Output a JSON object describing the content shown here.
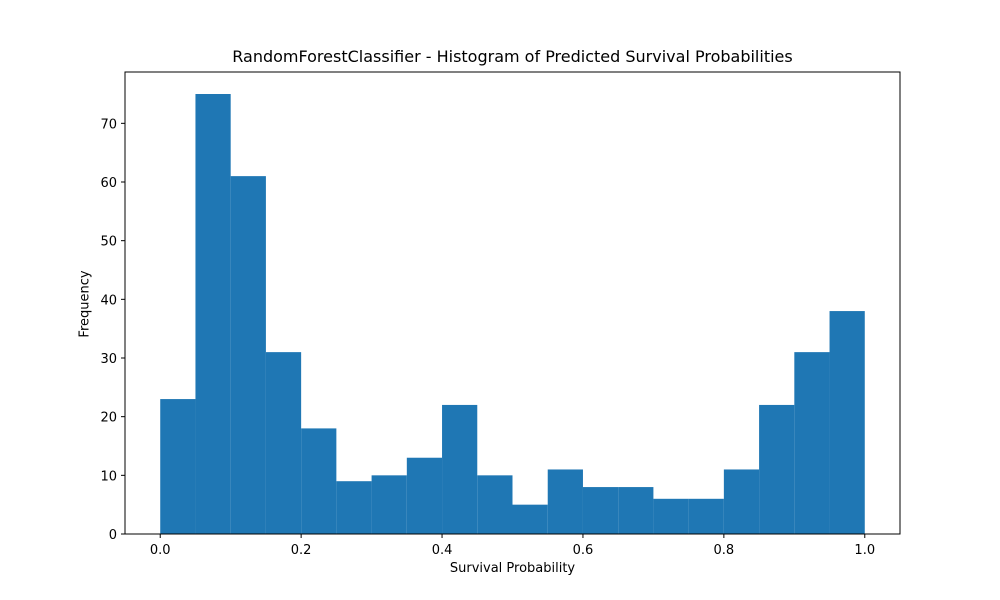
{
  "chart_data": {
    "type": "bar",
    "title": "RandomForestClassifier - Histogram of Predicted Survival Probabilities",
    "xlabel": "Survival Probability",
    "ylabel": "Frequency",
    "bin_edges": [
      0.0,
      0.05,
      0.1,
      0.15,
      0.2,
      0.25,
      0.3,
      0.35,
      0.4,
      0.45,
      0.5,
      0.55,
      0.6,
      0.65,
      0.7,
      0.75,
      0.8,
      0.85,
      0.9,
      0.95,
      1.0
    ],
    "values": [
      23,
      75,
      61,
      31,
      18,
      9,
      10,
      13,
      22,
      10,
      5,
      11,
      8,
      8,
      6,
      6,
      11,
      22,
      31,
      38
    ],
    "xlim": [
      -0.05,
      1.05
    ],
    "ylim": [
      0,
      78.75
    ],
    "x_ticks": [
      0.0,
      0.2,
      0.4,
      0.6,
      0.8,
      1.0
    ],
    "x_tick_labels": [
      "0.0",
      "0.2",
      "0.4",
      "0.6",
      "0.8",
      "1.0"
    ],
    "y_ticks": [
      0,
      10,
      20,
      30,
      40,
      50,
      60,
      70
    ],
    "y_tick_labels": [
      "0",
      "10",
      "20",
      "30",
      "40",
      "50",
      "60",
      "70"
    ],
    "bar_color": "#1f77b4",
    "grid": false,
    "legend": false
  }
}
